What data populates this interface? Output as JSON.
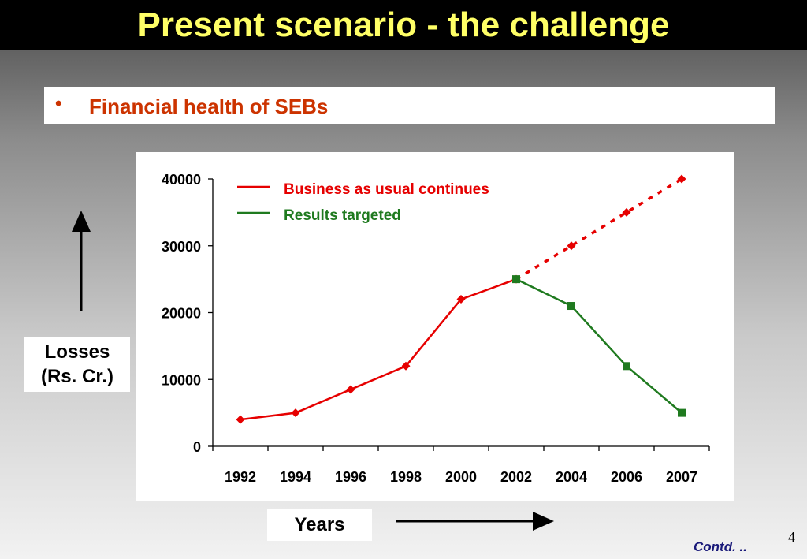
{
  "slide": {
    "title": "Present scenario - the challenge",
    "bullet_symbol": "•",
    "bullet_text": "Financial health of SEBs",
    "y_axis_label_line1": "Losses",
    "y_axis_label_line2": "(Rs. Cr.)",
    "x_axis_label": "Years",
    "page_number": "4",
    "footer_text": "Contd. .."
  },
  "colors": {
    "title_text": "#ffff66",
    "bullet_text": "#cc3300",
    "series_bau": "#e60000",
    "series_target": "#1f7a1f"
  },
  "chart_data": {
    "type": "line",
    "categories": [
      "1992",
      "1994",
      "1996",
      "1998",
      "2000",
      "2002",
      "2004",
      "2006",
      "2007"
    ],
    "ylim": [
      0,
      40000
    ],
    "yticks": [
      "0",
      "10000",
      "20000",
      "30000",
      "40000"
    ],
    "grid": false,
    "legend_position": "top",
    "series": [
      {
        "name": "Business as usual continues",
        "color": "#e60000",
        "marker": "diamond",
        "values": [
          4000,
          5000,
          8500,
          12000,
          22000,
          25000,
          30000,
          35000,
          40000
        ],
        "dashed_from_index": 5
      },
      {
        "name": "Results targeted",
        "color": "#1f7a1f",
        "marker": "square",
        "values": [
          null,
          null,
          null,
          null,
          null,
          25000,
          21000,
          12000,
          5000
        ]
      }
    ]
  }
}
